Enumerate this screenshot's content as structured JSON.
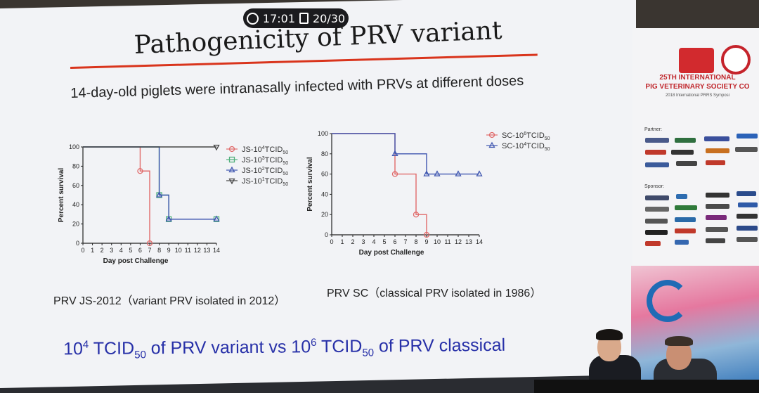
{
  "presentation": {
    "timer": {
      "time": "17:01",
      "slide_counter": "20/30"
    },
    "title": "Pathogenicity of PRV variant",
    "subtitle": "14-day-old piglets were intranasally infected with PRVs at different doses",
    "captions": {
      "left": "PRV JS-2012（variant PRV isolated in 2012）",
      "right": "PRV SC（classical PRV isolated in 1986）"
    },
    "bottom": {
      "part1": "10",
      "sup1": "4",
      "part2": " TCID",
      "sub1": "50",
      "part3": " of PRV variant vs 10",
      "sup2": "6",
      "part4": " TCID",
      "sub2": "50",
      "part5": " of PRV classical"
    },
    "accent_color": "#d9341c",
    "bottom_color": "#2730a8"
  },
  "sidebar": {
    "conference_line1": "25TH INTERNATIONAL",
    "conference_line2": "PIG VETERINARY SOCIETY CO",
    "conference_line3": "2018 International PRRS Symposi",
    "partner_label": "Partner:",
    "sponsor_label": "Sponsor:"
  },
  "chart_data": [
    {
      "type": "line",
      "step": true,
      "xlabel": "Day post Challenge",
      "ylabel": "Percent survival",
      "xlim": [
        0,
        14
      ],
      "ylim": [
        0,
        100
      ],
      "xticks": [
        0,
        1,
        2,
        3,
        4,
        5,
        6,
        7,
        8,
        9,
        10,
        11,
        12,
        13,
        14
      ],
      "yticks": [
        0,
        20,
        40,
        60,
        80,
        100
      ],
      "series": [
        {
          "name": "JS-10",
          "exp": "4",
          "suffix": "TCID",
          "sub": "50",
          "marker": "circle",
          "color": "#e06a6a",
          "x": [
            0,
            6,
            7
          ],
          "y": [
            100,
            75,
            0
          ]
        },
        {
          "name": "JS-10",
          "exp": "3",
          "suffix": "TCID",
          "sub": "50",
          "marker": "square",
          "color": "#4fb07a",
          "x": [
            0,
            8,
            9,
            14
          ],
          "y": [
            100,
            50,
            25,
            25
          ]
        },
        {
          "name": "JS-10",
          "exp": "2",
          "suffix": "TCID",
          "sub": "50",
          "marker": "triangle-up",
          "color": "#3f56b0",
          "x": [
            0,
            8,
            9,
            14
          ],
          "y": [
            100,
            50,
            25,
            25
          ]
        },
        {
          "name": "JS-10",
          "exp": "1",
          "suffix": "TCID",
          "sub": "50",
          "marker": "triangle-down",
          "color": "#444444",
          "x": [
            0,
            14
          ],
          "y": [
            100,
            100
          ]
        }
      ]
    },
    {
      "type": "line",
      "step": true,
      "xlabel": "Day post Challenge",
      "ylabel": "Percent survival",
      "xlim": [
        0,
        14
      ],
      "ylim": [
        0,
        100
      ],
      "xticks": [
        0,
        1,
        2,
        3,
        4,
        5,
        6,
        7,
        8,
        9,
        10,
        11,
        12,
        13,
        14
      ],
      "yticks": [
        0,
        20,
        40,
        60,
        80,
        100
      ],
      "series": [
        {
          "name": "SC-10",
          "exp": "6",
          "suffix": "TCID",
          "sub": "50",
          "marker": "circle",
          "color": "#e06a6a",
          "x": [
            0,
            6,
            8,
            9
          ],
          "y": [
            100,
            60,
            20,
            0
          ]
        },
        {
          "name": "SC-10",
          "exp": "4",
          "suffix": "TCID",
          "sub": "50",
          "marker": "triangle-up",
          "color": "#3f56b0",
          "x": [
            0,
            6,
            9,
            10,
            12,
            14
          ],
          "y": [
            100,
            80,
            60,
            60,
            60,
            60
          ]
        }
      ]
    }
  ]
}
